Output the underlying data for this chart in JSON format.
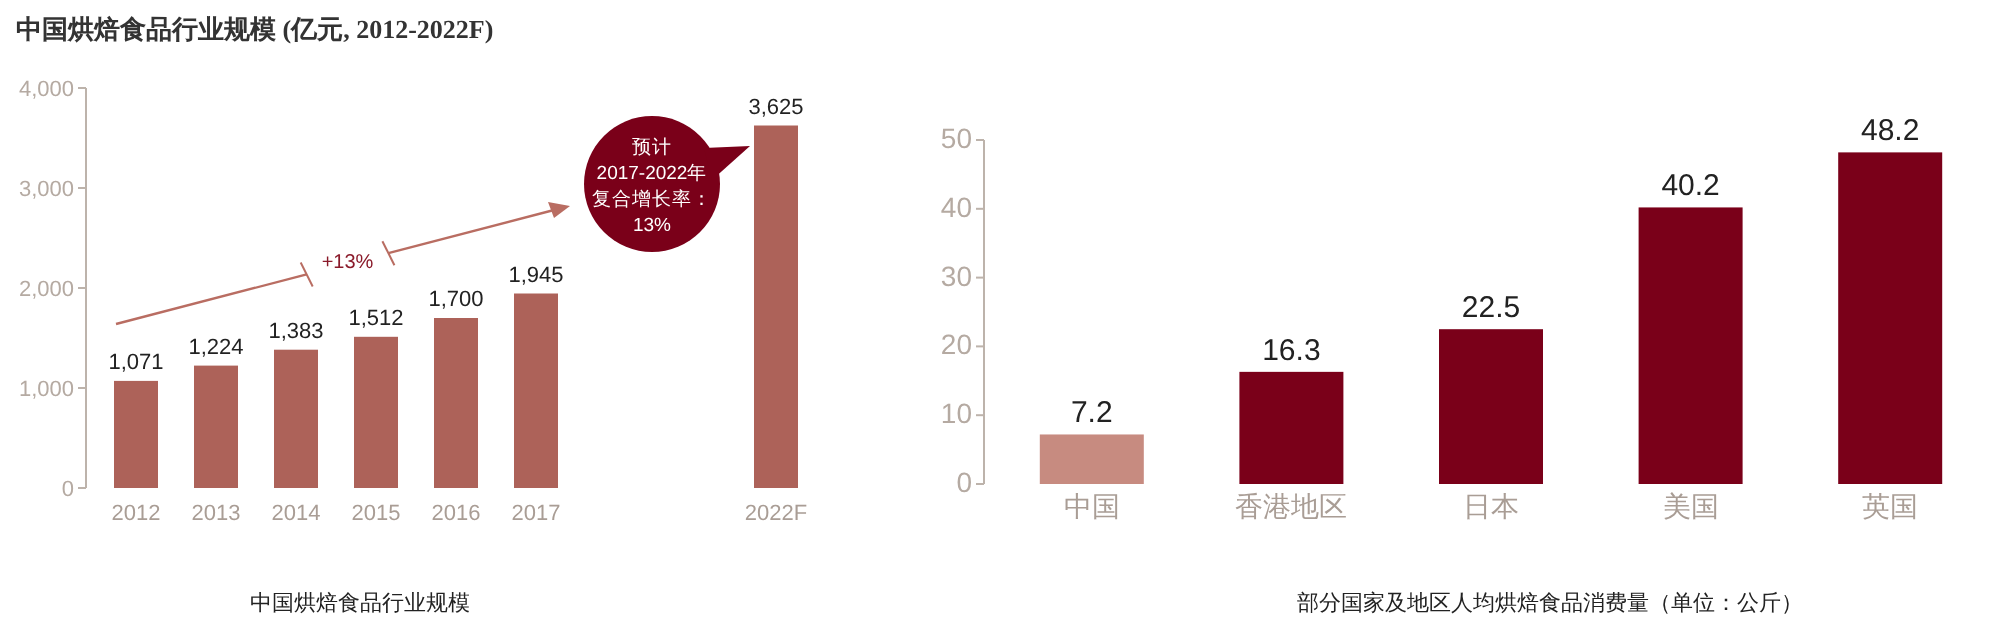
{
  "chart_data": [
    {
      "type": "bar",
      "title": "中国烘焙食品行业规模 (亿元, 2012-2022F)",
      "categories": [
        "2012",
        "2013",
        "2014",
        "2015",
        "2016",
        "2017",
        null,
        null,
        "2022F"
      ],
      "values": [
        1071,
        1224,
        1383,
        1512,
        1700,
        1945,
        null,
        null,
        3625
      ],
      "color": "#ad6259",
      "value_labels": [
        "1,071",
        "1,224",
        "1,383",
        "1,512",
        "1,700",
        "1,945",
        null,
        null,
        "3,625"
      ],
      "ylim": [
        0,
        4000
      ],
      "yticks": [
        0,
        {
          "value": 1000,
          "label": "1,000"
        },
        {
          "value": 2000,
          "label": "2,000"
        },
        {
          "value": 3000,
          "label": "3,000"
        },
        {
          "value": 4000,
          "label": "4,000"
        }
      ],
      "annotations": [
        "+13%",
        "预计",
        "2017-2022年",
        "复合增长率：",
        "13%",
        "中国烘焙食品行业规模"
      ]
    },
    {
      "type": "bar",
      "categories": [
        "中国",
        "香港地区",
        "日本",
        "美国",
        "英国"
      ],
      "values": [
        7.2,
        16.3,
        22.5,
        40.2,
        48.2
      ],
      "colors": [
        "#c78b80",
        "#7a0019",
        "#7a0019",
        "#7a0019",
        "#7a0019"
      ],
      "data_labels": true,
      "ylim": [
        0,
        50
      ],
      "yticks": [
        0,
        10,
        20,
        30,
        40,
        50
      ],
      "annotations": [
        "部分国家及地区人均烘焙食品消费量（单位：公斤）"
      ]
    }
  ]
}
